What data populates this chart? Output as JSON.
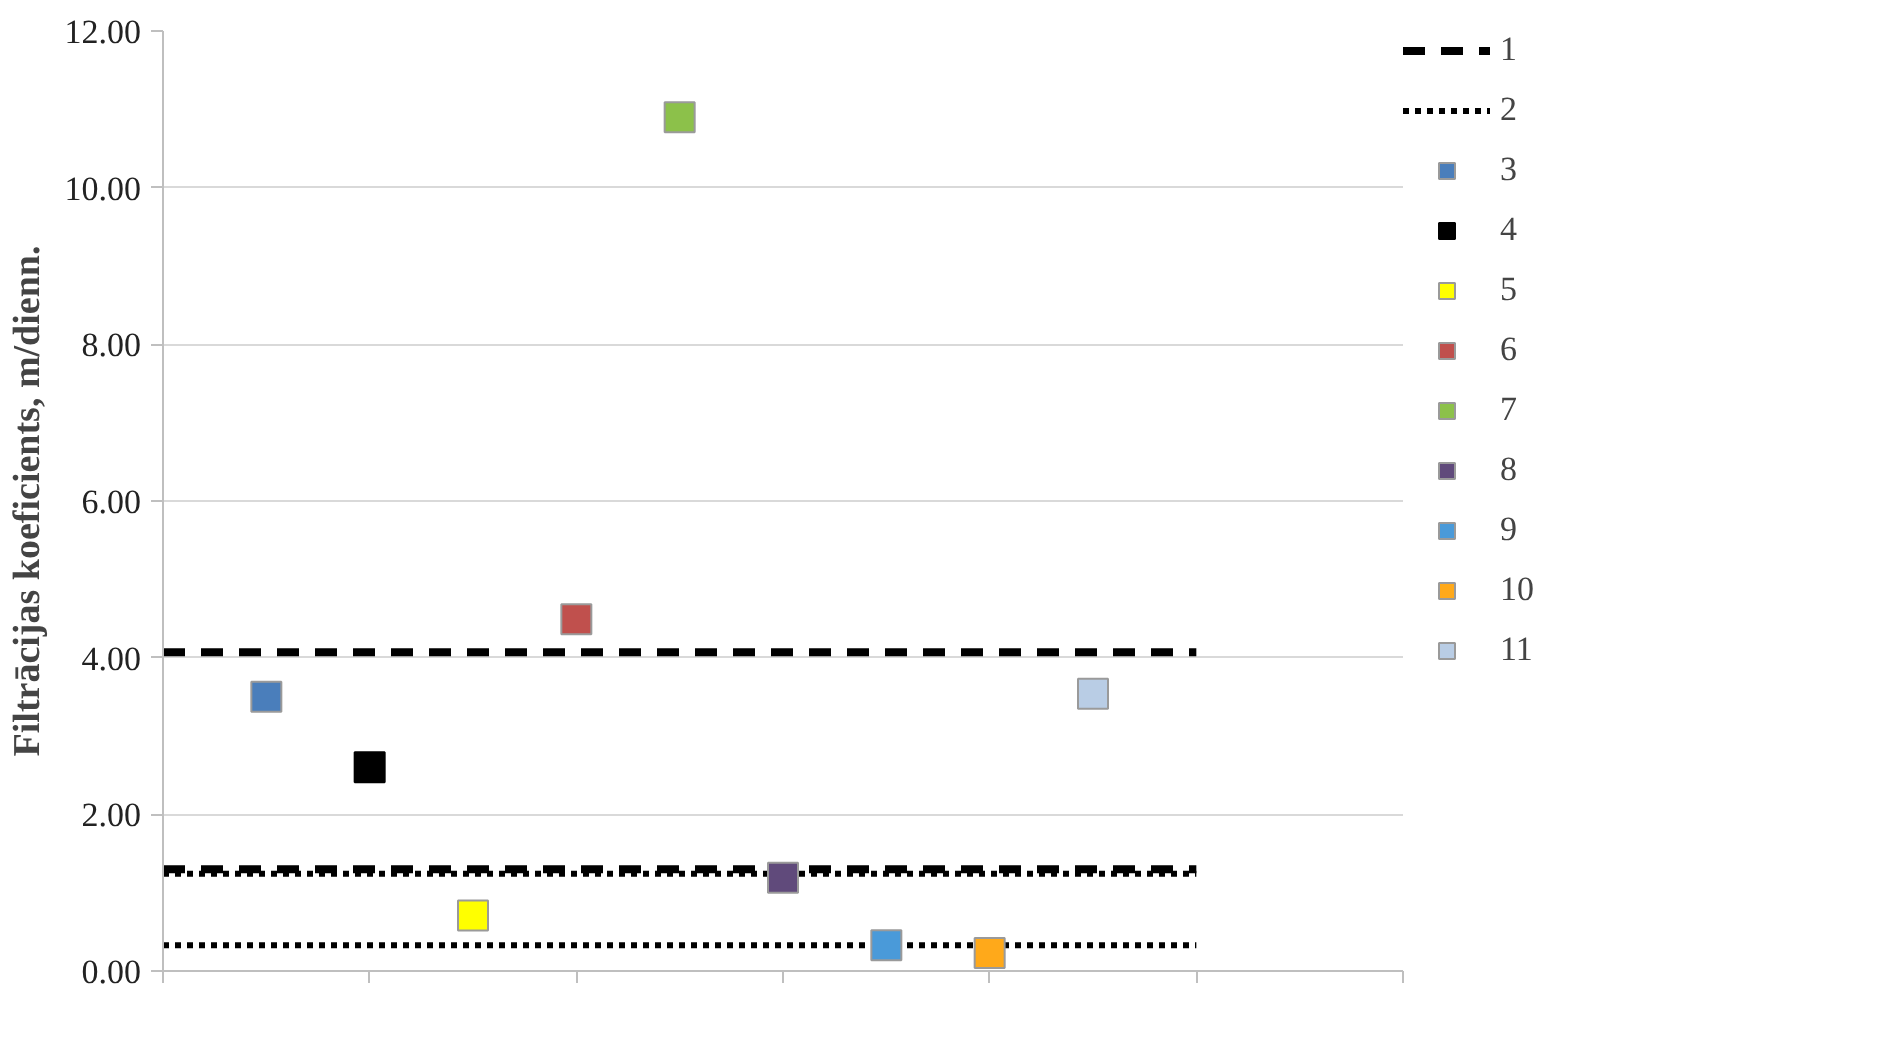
{
  "chart_data": {
    "type": "scatter",
    "ylabel": "Filtrācijas koeficients, m/dienn.",
    "categories": [
      null,
      null,
      null,
      null,
      null,
      null,
      null,
      null,
      null,
      null,
      null
    ],
    "ylim": [
      0,
      12
    ],
    "yticks": [
      {
        "value": 0,
        "label": "0.00"
      },
      {
        "value": 2,
        "label": "2.00"
      },
      {
        "value": 4,
        "label": "4.00"
      },
      {
        "value": 6,
        "label": "6.00"
      },
      {
        "value": 8,
        "label": "8.00"
      },
      {
        "value": 10,
        "label": "10.00"
      },
      {
        "value": 12,
        "label": "12.00"
      }
    ],
    "grid": "y",
    "legend": "right",
    "marker": "square",
    "series": [
      {
        "name": "1",
        "type": "line",
        "line_style": "dashed",
        "marker": "none",
        "color": "#000000",
        "values": [
          4.07,
          4.07,
          4.07,
          4.07,
          4.07,
          4.07,
          4.07,
          4.07,
          4.07,
          4.07,
          4.07
        ]
      },
      {
        "type": "line",
        "line_style": "dashed",
        "marker": "none",
        "color": "#000000",
        "values": [
          1.3,
          1.3,
          1.3,
          1.3,
          1.3,
          1.3,
          1.3,
          1.3,
          1.3,
          1.3,
          1.3
        ]
      },
      {
        "name": "2",
        "type": "line",
        "line_style": "dotted",
        "marker": "none",
        "color": "#000000",
        "values": [
          1.24,
          1.24,
          1.24,
          1.24,
          1.24,
          1.24,
          1.24,
          1.24,
          1.24,
          1.24,
          1.24
        ]
      },
      {
        "type": "line",
        "line_style": "dotted",
        "marker": "none",
        "color": "#000000",
        "values": [
          0.33,
          0.33,
          0.33,
          0.33,
          0.33,
          0.33,
          0.33,
          0.33,
          0.33,
          0.33,
          0.33
        ]
      },
      {
        "name": "3",
        "color": "#4a7ebb",
        "values": [
          null,
          3.5,
          null,
          null,
          null,
          null,
          null,
          null,
          null,
          null,
          null
        ]
      },
      {
        "name": "4",
        "color": "#000000",
        "values": [
          null,
          null,
          2.6,
          null,
          null,
          null,
          null,
          null,
          null,
          null,
          null
        ]
      },
      {
        "name": "5",
        "color": "#ffff00",
        "values": [
          null,
          null,
          null,
          0.71,
          null,
          null,
          null,
          null,
          null,
          null,
          null
        ]
      },
      {
        "name": "6",
        "color": "#c0504d",
        "values": [
          null,
          null,
          null,
          null,
          4.49,
          null,
          null,
          null,
          null,
          null,
          null
        ]
      },
      {
        "name": "7",
        "color": "#8cc14a",
        "values": [
          null,
          null,
          null,
          null,
          null,
          10.9,
          null,
          null,
          null,
          null,
          null
        ]
      },
      {
        "name": "8",
        "color": "#604a7b",
        "values": [
          null,
          null,
          null,
          null,
          null,
          null,
          1.19,
          null,
          null,
          null,
          null
        ]
      },
      {
        "name": "9",
        "color": "#4a9ad9",
        "values": [
          null,
          null,
          null,
          null,
          null,
          null,
          null,
          0.33,
          null,
          null,
          null
        ]
      },
      {
        "name": "10",
        "color": "#ffa91a",
        "values": [
          null,
          null,
          null,
          null,
          null,
          null,
          null,
          null,
          0.23,
          null,
          null
        ]
      },
      {
        "name": "11",
        "color": "#b9cde5",
        "values": [
          null,
          null,
          null,
          null,
          null,
          null,
          null,
          null,
          null,
          3.54,
          null
        ]
      }
    ]
  }
}
